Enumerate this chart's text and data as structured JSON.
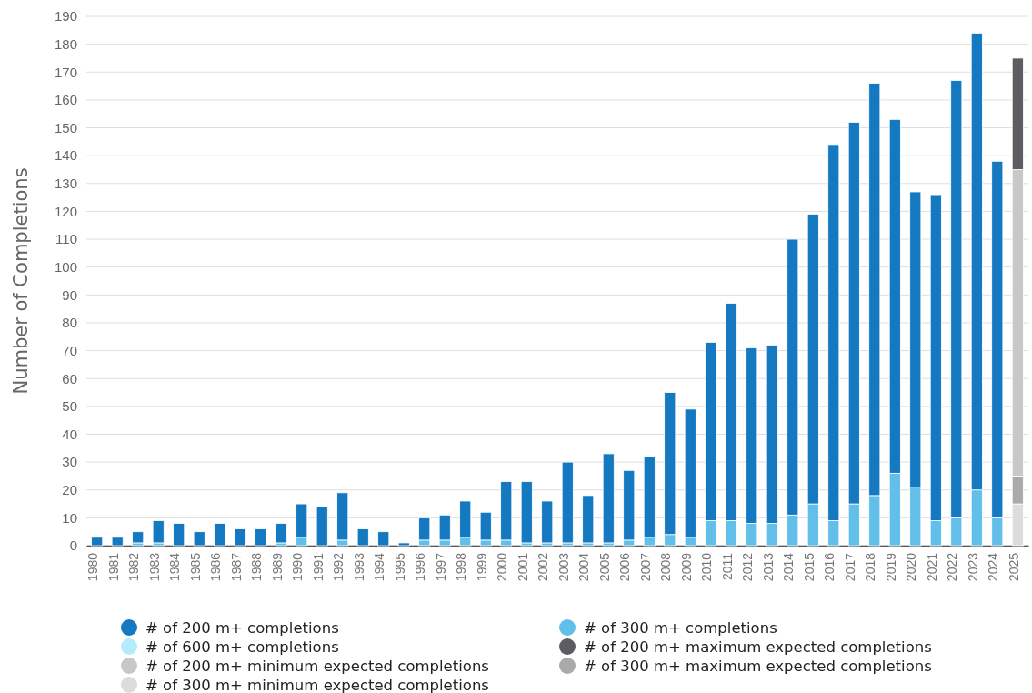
{
  "chart_data": {
    "type": "bar",
    "ylabel": "Number of Completions",
    "stacked": true,
    "grid": "y",
    "legend": "bottom",
    "ylim": [
      0,
      190
    ],
    "yticks": [
      0,
      10,
      20,
      30,
      40,
      50,
      60,
      70,
      80,
      90,
      100,
      110,
      120,
      130,
      140,
      150,
      160,
      170,
      180,
      190
    ],
    "categories": [
      "1980",
      "1981",
      "1982",
      "1983",
      "1984",
      "1985",
      "1986",
      "1987",
      "1988",
      "1989",
      "1990",
      "1991",
      "1992",
      "1993",
      "1994",
      "1995",
      "1996",
      "1997",
      "1998",
      "1999",
      "2000",
      "2001",
      "2002",
      "2003",
      "2004",
      "2005",
      "2006",
      "2007",
      "2008",
      "2009",
      "2010",
      "2011",
      "2012",
      "2013",
      "2014",
      "2015",
      "2016",
      "2017",
      "2018",
      "2019",
      "2020",
      "2021",
      "2022",
      "2023",
      "2024",
      "2025"
    ],
    "series": [
      {
        "name": "# of 600 m+ completions",
        "color": "#b3ecfb",
        "values": [
          0,
          0,
          0,
          0,
          0,
          0,
          0,
          0,
          0,
          0,
          0,
          0,
          0,
          0,
          0,
          0,
          0,
          0,
          0,
          0,
          0,
          0,
          0,
          0,
          0,
          0,
          0,
          0,
          0,
          0,
          0,
          0,
          0,
          0,
          0,
          0,
          0,
          0,
          0,
          0,
          0,
          0,
          0,
          0,
          0,
          null
        ]
      },
      {
        "name": "# of 300 m+ completions",
        "color": "#62bfea",
        "values": [
          0,
          0,
          1,
          1,
          0,
          0,
          0,
          0,
          0,
          1,
          3,
          0,
          2,
          0,
          0,
          0,
          2,
          2,
          3,
          2,
          2,
          1,
          1,
          1,
          1,
          1,
          2,
          3,
          4,
          3,
          9,
          9,
          8,
          8,
          11,
          15,
          9,
          15,
          18,
          26,
          21,
          9,
          10,
          20,
          10,
          null
        ]
      },
      {
        "name": "# of 200 m+ completions",
        "color": "#1479c0",
        "values": [
          3,
          3,
          4,
          8,
          8,
          5,
          8,
          6,
          6,
          7,
          12,
          14,
          17,
          6,
          5,
          1,
          8,
          9,
          13,
          10,
          21,
          22,
          15,
          29,
          17,
          32,
          25,
          29,
          51,
          46,
          64,
          78,
          63,
          64,
          99,
          104,
          135,
          137,
          148,
          127,
          106,
          117,
          157,
          164,
          128,
          null
        ]
      },
      {
        "name": "# of 300 m+ minimum expected completions",
        "color": "#dcdcdc",
        "values": [
          null,
          null,
          null,
          null,
          null,
          null,
          null,
          null,
          null,
          null,
          null,
          null,
          null,
          null,
          null,
          null,
          null,
          null,
          null,
          null,
          null,
          null,
          null,
          null,
          null,
          null,
          null,
          null,
          null,
          null,
          null,
          null,
          null,
          null,
          null,
          null,
          null,
          null,
          null,
          null,
          null,
          null,
          null,
          null,
          null,
          15
        ]
      },
      {
        "name": "# of 300 m+ maximum expected completions",
        "color": "#aaaaaa",
        "values": [
          null,
          null,
          null,
          null,
          null,
          null,
          null,
          null,
          null,
          null,
          null,
          null,
          null,
          null,
          null,
          null,
          null,
          null,
          null,
          null,
          null,
          null,
          null,
          null,
          null,
          null,
          null,
          null,
          null,
          null,
          null,
          null,
          null,
          null,
          null,
          null,
          null,
          null,
          null,
          null,
          null,
          null,
          null,
          null,
          null,
          10
        ]
      },
      {
        "name": "# of 200 m+ minimum expected completions",
        "color": "#c8c8c8",
        "values": [
          null,
          null,
          null,
          null,
          null,
          null,
          null,
          null,
          null,
          null,
          null,
          null,
          null,
          null,
          null,
          null,
          null,
          null,
          null,
          null,
          null,
          null,
          null,
          null,
          null,
          null,
          null,
          null,
          null,
          null,
          null,
          null,
          null,
          null,
          null,
          null,
          null,
          null,
          null,
          null,
          null,
          null,
          null,
          null,
          null,
          110
        ]
      },
      {
        "name": "# of 200 m+ maximum expected completions",
        "color": "#5c5c63",
        "values": [
          null,
          null,
          null,
          null,
          null,
          null,
          null,
          null,
          null,
          null,
          null,
          null,
          null,
          null,
          null,
          null,
          null,
          null,
          null,
          null,
          null,
          null,
          null,
          null,
          null,
          null,
          null,
          null,
          null,
          null,
          null,
          null,
          null,
          null,
          null,
          null,
          null,
          null,
          null,
          null,
          null,
          null,
          null,
          null,
          null,
          40
        ]
      }
    ]
  }
}
